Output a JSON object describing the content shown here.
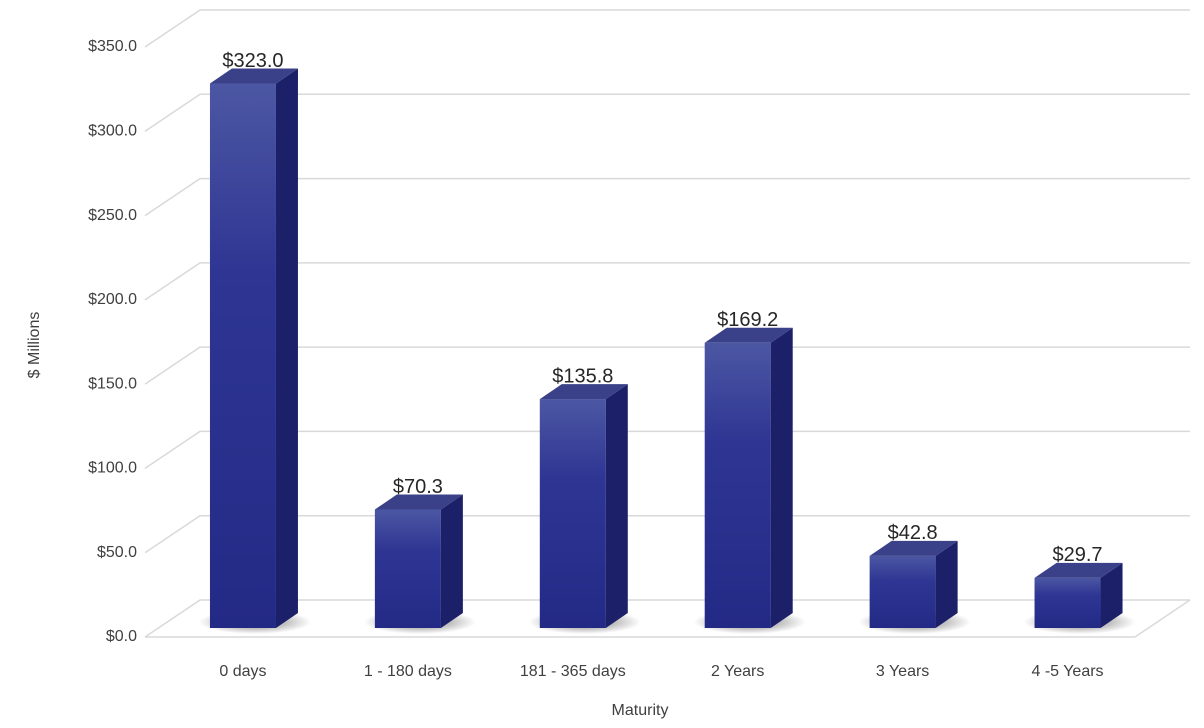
{
  "chart_data": {
    "type": "bar3d",
    "x_label": "Maturity",
    "y_label": "$ Millions",
    "categories": [
      "0 days",
      "1 - 180 days",
      "181 - 365 days",
      "2 Years",
      "3 Years",
      "4 -5 Years"
    ],
    "values": [
      323.0,
      70.3,
      135.8,
      169.2,
      42.8,
      29.7
    ],
    "value_labels": [
      "$323.0",
      "$70.3",
      "$135.8",
      "$169.2",
      "$42.8",
      "$29.7"
    ],
    "color": "#2b3190",
    "ylim": [
      0,
      350
    ],
    "yticks": [
      {
        "value": 0,
        "label": "$0.0"
      },
      {
        "value": 50,
        "label": "$50.0"
      },
      {
        "value": 100,
        "label": "$100.0"
      },
      {
        "value": 150,
        "label": "$150.0"
      },
      {
        "value": 200,
        "label": "$200.0"
      },
      {
        "value": 250,
        "label": "$250.0"
      },
      {
        "value": 300,
        "label": "$300.0"
      },
      {
        "value": 350,
        "label": "$350.0"
      }
    ],
    "grid": true
  }
}
